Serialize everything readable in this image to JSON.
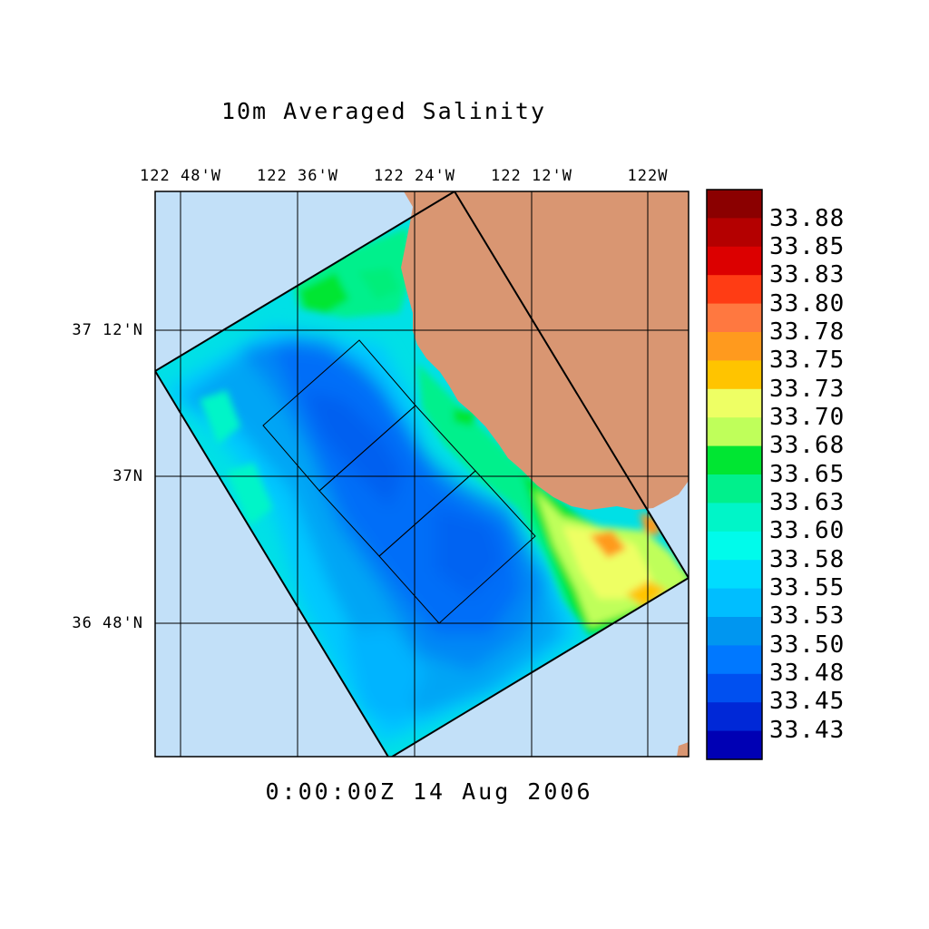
{
  "title": "10m Averaged Salinity",
  "timestamp": "0:00:00Z  14 Aug 2006",
  "map": {
    "longitude_ticks": [
      "122 48'W",
      "122 36'W",
      "122 24'W",
      "122 12'W",
      "122W"
    ],
    "latitude_ticks": [
      "37 12'N",
      "37N",
      "36 48'N"
    ],
    "colors": {
      "ocean_outside": "#c2e0f8",
      "land": "#d99672",
      "frame": "#000000"
    }
  },
  "colorbar": {
    "labels": [
      "33.88",
      "33.85",
      "33.83",
      "33.80",
      "33.78",
      "33.75",
      "33.73",
      "33.70",
      "33.68",
      "33.65",
      "33.63",
      "33.60",
      "33.58",
      "33.55",
      "33.53",
      "33.50",
      "33.48",
      "33.45",
      "33.43"
    ],
    "colors": [
      "#8b0000",
      "#b40000",
      "#dc0000",
      "#ff3c14",
      "#ff7840",
      "#ff9a1e",
      "#ffc400",
      "#eeff64",
      "#bfff5a",
      "#00e632",
      "#00f08c",
      "#00f5c8",
      "#00fbeb",
      "#00dcff",
      "#00beff",
      "#0096f0",
      "#0078ff",
      "#0050f0",
      "#0028d7",
      "#0000b4"
    ]
  }
}
